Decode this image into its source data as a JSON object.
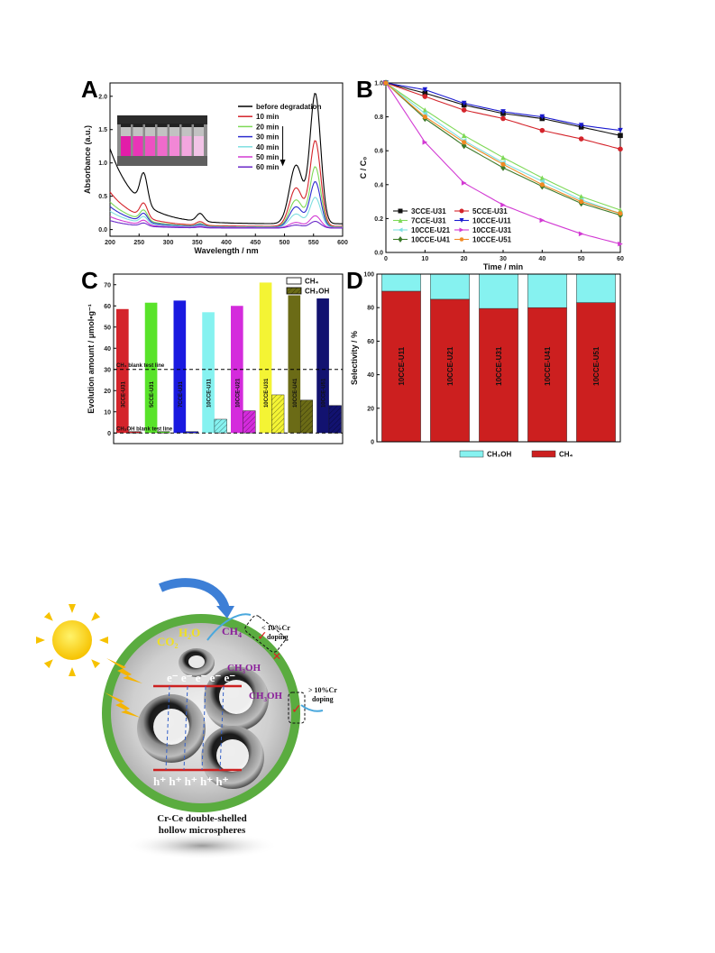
{
  "figure": {
    "panel_labels": [
      "A",
      "B",
      "C",
      "D"
    ],
    "schematic": {
      "molecules": {
        "co2": "CO",
        "h2o": "H",
        "ch4": "CH",
        "ch3oh_inner": "CH",
        "ch3oh_outer": "CH"
      },
      "doping_low": "< 10%Cr",
      "doping_low_2": "doping",
      "doping_high": "> 10%Cr",
      "doping_high_2": "doping",
      "electrons": "e⁻ e⁻ e⁻ e⁻ e⁻",
      "holes": "h⁺ h⁺ h⁺ h⁺ h⁺",
      "caption_line1": "Cr-Ce double-shelled",
      "caption_line2": "hollow microspheres"
    }
  },
  "chart_data": [
    {
      "id": "A",
      "type": "line",
      "xlabel": "Wavelength / nm",
      "ylabel": "Absorbance (a.u.)",
      "xlim": [
        200,
        600
      ],
      "ylim": [
        -0.1,
        2.2
      ],
      "xticks": [
        200,
        250,
        300,
        350,
        400,
        450,
        500,
        550,
        600
      ],
      "yticks": [
        0.0,
        0.5,
        1.0,
        1.5,
        2.0
      ],
      "legend_position": "top-right",
      "series": [
        {
          "name": "before degradation",
          "color": "#000000",
          "bg": 1.2,
          "peak": 1.95
        },
        {
          "name": "10 min",
          "color": "#d4242b",
          "bg": 0.55,
          "peak": 1.28
        },
        {
          "name": "20 min",
          "color": "#7ed957",
          "bg": 0.4,
          "peak": 0.9
        },
        {
          "name": "30 min",
          "color": "#2c2ccf",
          "bg": 0.33,
          "peak": 0.68
        },
        {
          "name": "40 min",
          "color": "#7fdfe0",
          "bg": 0.26,
          "peak": 0.45
        },
        {
          "name": "50 min",
          "color": "#d23ad3",
          "bg": 0.18,
          "peak": 0.18
        },
        {
          "name": "60 min",
          "color": "#6a28c8",
          "bg": 0.12,
          "peak": 0.1
        }
      ]
    },
    {
      "id": "B",
      "type": "line",
      "xlabel": "Time / min",
      "ylabel": "C / C₀",
      "xlim": [
        0,
        60
      ],
      "ylim": [
        0,
        1.0
      ],
      "xticks": [
        0,
        10,
        20,
        30,
        40,
        50,
        60
      ],
      "yticks": [
        0.0,
        0.2,
        0.4,
        0.6,
        0.8,
        1.0
      ],
      "legend_position": "bottom-left",
      "x": [
        0,
        10,
        20,
        30,
        40,
        50,
        60
      ],
      "series": [
        {
          "name": "3CCE-U31",
          "color": "#111111",
          "marker": "square",
          "values": [
            1.0,
            0.94,
            0.87,
            0.82,
            0.79,
            0.74,
            0.69
          ]
        },
        {
          "name": "5CCE-U31",
          "color": "#d4242b",
          "marker": "circle",
          "values": [
            1.0,
            0.92,
            0.84,
            0.79,
            0.72,
            0.67,
            0.61
          ]
        },
        {
          "name": "7CCE-U31",
          "color": "#7ed957",
          "marker": "triangle-up",
          "values": [
            1.0,
            0.84,
            0.69,
            0.56,
            0.44,
            0.33,
            0.25
          ]
        },
        {
          "name": "10CCE-U11",
          "color": "#1a1ad0",
          "marker": "triangle-down",
          "values": [
            1.0,
            0.96,
            0.88,
            0.83,
            0.8,
            0.75,
            0.72
          ]
        },
        {
          "name": "10CCE-U21",
          "color": "#7fdfe0",
          "marker": "triangle-left",
          "values": [
            1.0,
            0.82,
            0.66,
            0.53,
            0.42,
            0.31,
            0.23
          ]
        },
        {
          "name": "10CCE-U31",
          "color": "#d23ad3",
          "marker": "triangle-right",
          "values": [
            1.0,
            0.65,
            0.41,
            0.28,
            0.19,
            0.11,
            0.05
          ]
        },
        {
          "name": "10CCE-U41",
          "color": "#3d7a2a",
          "marker": "diamond",
          "values": [
            1.0,
            0.79,
            0.63,
            0.5,
            0.39,
            0.29,
            0.22
          ]
        },
        {
          "name": "10CCE-U51",
          "color": "#f08a24",
          "marker": "hexagon",
          "values": [
            1.0,
            0.8,
            0.65,
            0.52,
            0.4,
            0.3,
            0.23
          ]
        }
      ]
    },
    {
      "id": "C",
      "type": "bar",
      "ylabel": "Evolution amount / μmol•g⁻¹",
      "ylim": [
        -5,
        75
      ],
      "yticks": [
        0,
        10,
        20,
        30,
        40,
        50,
        60,
        70
      ],
      "categories": [
        "3CCE-U31",
        "5CCE-U31",
        "7CCE-U31",
        "10CCE-U11",
        "10CCE-U21",
        "10CCE-U31",
        "10CCE-U41",
        "10CCE-U51"
      ],
      "colors": [
        "#d4242b",
        "#59e32a",
        "#1a1ae0",
        "#86f2f0",
        "#d42bdc",
        "#f4f434",
        "#6b6b16",
        "#121270"
      ],
      "series": [
        {
          "name": "CH₄",
          "values": [
            58.5,
            61.5,
            62.5,
            57,
            60,
            71,
            65,
            63.5
          ]
        },
        {
          "name": "CH₃OH",
          "values": [
            0,
            0,
            0,
            6.5,
            10.5,
            18,
            15.5,
            13
          ]
        }
      ],
      "ref_lines": [
        {
          "label": "CH₄ blank test line",
          "value": 30
        },
        {
          "label": "CH₃OH blank test line",
          "value": 0
        }
      ],
      "legend_position": "top-right"
    },
    {
      "id": "D",
      "type": "bar",
      "ylabel": "Selectivity / %",
      "ylim": [
        0,
        100
      ],
      "yticks": [
        0,
        20,
        40,
        60,
        80,
        100
      ],
      "categories": [
        "10CCE-U11",
        "10CCE-U21",
        "10CCE-U31",
        "10CCE-U41",
        "10CCE-U51"
      ],
      "series": [
        {
          "name": "CH₄",
          "color": "#cc1f1f",
          "values": [
            89.8,
            85,
            79.5,
            80,
            83
          ]
        },
        {
          "name": "CH₃OH",
          "color": "#86f2f0",
          "values": [
            10.2,
            15,
            20.5,
            20,
            17
          ]
        }
      ],
      "legend_position": "bottom"
    }
  ]
}
